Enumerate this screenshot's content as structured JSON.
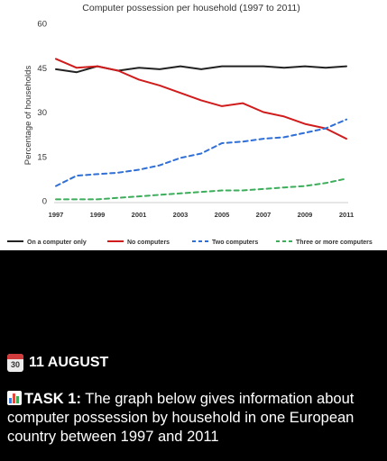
{
  "chart_data": {
    "type": "line",
    "title": "Computer possession per household (1997 to 2011)",
    "xlabel": "",
    "ylabel": "Percentage of households",
    "x": [
      1997,
      1998,
      1999,
      2000,
      2001,
      2002,
      2003,
      2004,
      2005,
      2006,
      2007,
      2008,
      2009,
      2010,
      2011
    ],
    "x_ticks": [
      "1997",
      "1999",
      "2001",
      "2003",
      "2005",
      "2007",
      "2009",
      "2011"
    ],
    "y_ticks": [
      "0",
      "15",
      "30",
      "45",
      "60"
    ],
    "ylim": [
      0,
      60
    ],
    "grid": false,
    "legend_position": "bottom",
    "series": [
      {
        "name": "On a computer only",
        "color": "#222222",
        "dash": "solid",
        "values": [
          44.5,
          43.5,
          45.5,
          44,
          45,
          44.5,
          45.5,
          44.5,
          45.5,
          45.5,
          45.5,
          45,
          45.5,
          45,
          45.5
        ]
      },
      {
        "name": "No computers",
        "color": "#d01c1c",
        "dash": "solid",
        "values": [
          48,
          45,
          45.5,
          44,
          41,
          39,
          36.5,
          34,
          32,
          33,
          30,
          28.5,
          26,
          24.5,
          21
        ]
      },
      {
        "name": "Two computers",
        "color": "#2f6fd6",
        "dash": "dashed",
        "values": [
          5,
          8.5,
          9,
          9.5,
          10.5,
          12,
          14.5,
          16,
          19.5,
          20,
          21,
          21.5,
          23,
          24.5,
          27.5
        ]
      },
      {
        "name": "Three or more computers",
        "color": "#3cae5b",
        "dash": "dashed",
        "values": [
          0.5,
          0.5,
          0.5,
          1,
          1.5,
          2,
          2.5,
          3,
          3.5,
          3.5,
          4,
          4.5,
          5,
          6,
          7.5
        ]
      }
    ]
  },
  "caption": {
    "calendar_icon": "calendar-icon",
    "calendar_number": "30",
    "date": "11 AUGUST",
    "chart_icon": "bar-chart-icon",
    "task_label": "TASK 1:",
    "task_text": " The graph below gives information about computer possession by household in one European country between 1997 and 2011"
  }
}
